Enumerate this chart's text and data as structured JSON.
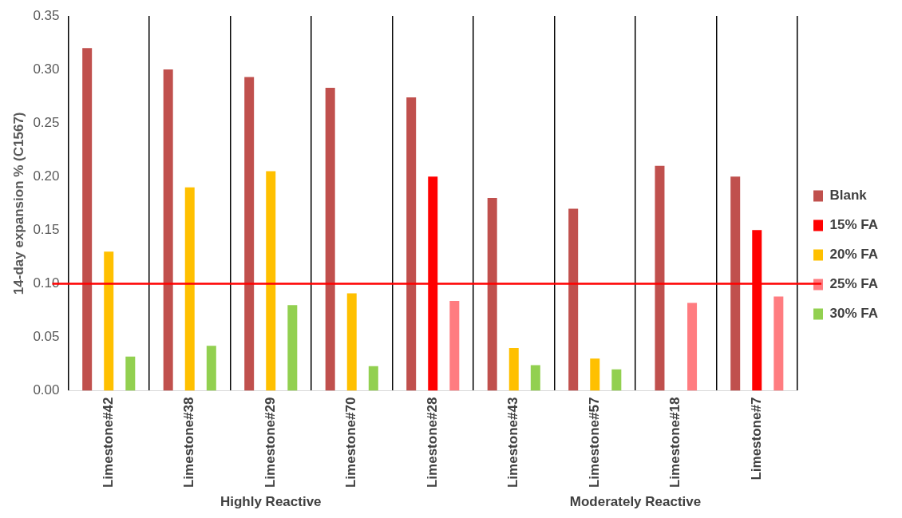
{
  "chart_data": {
    "type": "bar",
    "ylabel": "14-day expansion % (C1567)",
    "categories": [
      "Limestone#42",
      "Limestone#38",
      "Limestone#29",
      "Limestone#70",
      "Limestone#28",
      "Limestone#43",
      "Limestone#57",
      "Limestone#18",
      "Limestone#7"
    ],
    "series": [
      {
        "name": "Blank",
        "color": "#c0504d",
        "values": [
          0.32,
          0.3,
          0.293,
          0.283,
          0.274,
          0.18,
          0.17,
          0.21,
          0.2
        ]
      },
      {
        "name": "15% FA",
        "color": "#ff0000",
        "values": [
          null,
          null,
          null,
          null,
          0.2,
          null,
          null,
          null,
          0.15
        ]
      },
      {
        "name": "20% FA",
        "color": "#ffc000",
        "values": [
          0.13,
          0.19,
          0.205,
          0.091,
          null,
          0.04,
          0.03,
          null,
          null
        ]
      },
      {
        "name": "25% FA",
        "color": "#ff7c80",
        "values": [
          null,
          null,
          null,
          null,
          0.084,
          null,
          null,
          0.082,
          0.088
        ]
      },
      {
        "name": "30% FA",
        "color": "#92d050",
        "values": [
          0.032,
          0.042,
          0.08,
          0.023,
          null,
          0.024,
          0.02,
          null,
          null
        ]
      }
    ],
    "ylim": [
      0,
      0.35
    ],
    "yticks": [
      {
        "value": 0,
        "label": "0.00"
      },
      {
        "value": 0.05,
        "label": "0.05"
      },
      {
        "value": 0.1,
        "label": "0.10"
      },
      {
        "value": 0.15,
        "label": "0.15"
      },
      {
        "value": 0.2,
        "label": "0.20"
      },
      {
        "value": 0.25,
        "label": "0.25"
      },
      {
        "value": 0.3,
        "label": "0.30"
      },
      {
        "value": 0.35,
        "label": "0.35"
      }
    ],
    "ref_lines": [
      {
        "axis": "y",
        "value": 0.1,
        "color": "#ff0000"
      }
    ],
    "annotations": [
      "Highly Reactive",
      "Moderately Reactive"
    ],
    "grid": "x",
    "legend": "right"
  }
}
